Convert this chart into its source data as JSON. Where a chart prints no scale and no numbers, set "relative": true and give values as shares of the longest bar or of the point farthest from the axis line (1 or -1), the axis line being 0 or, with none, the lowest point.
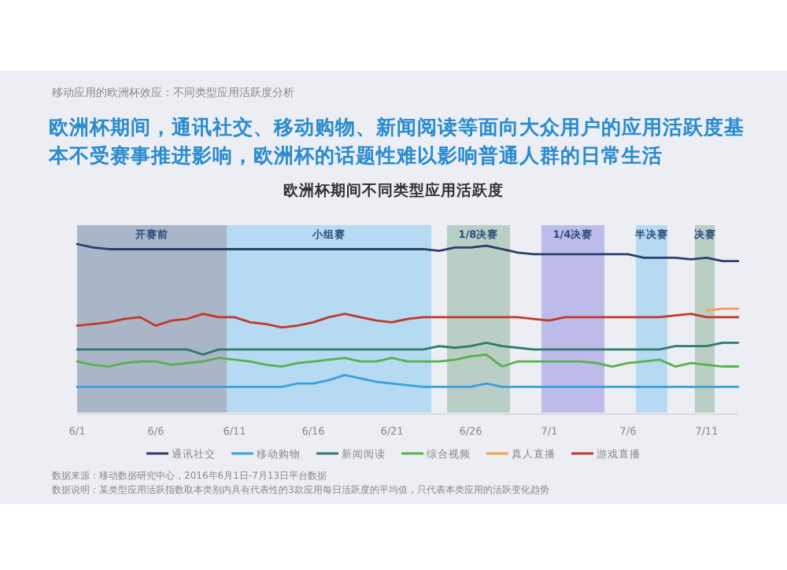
{
  "chart_data": {
    "type": "line",
    "relative": true,
    "title": "欧洲杯期间不同类型应用活跃度",
    "subtitle": "欧洲杯期间，通讯社交、移动购物、新闻阅读等面向大众用户的应用活跃度基本不受赛事推进影响，欧洲杯的话题性难以影响普通人群的日常生活",
    "annotations": [
      "移动应用的欧洲杯效应：不同类型应用活跃度分析",
      "数据来源：移动数据研究中心，2016年6月1日-7月13日平台数据",
      "数据说明：某类型应用活跃指数取本类别内具有代表性的3款应用每日活跃度的平均值，只代表本类应用的活跃变化趋势"
    ],
    "x": [
      "2016-06-01",
      "2016-06-02",
      "2016-06-03",
      "2016-06-04",
      "2016-06-05",
      "2016-06-06",
      "2016-06-07",
      "2016-06-08",
      "2016-06-09",
      "2016-06-10",
      "2016-06-11",
      "2016-06-12",
      "2016-06-13",
      "2016-06-14",
      "2016-06-15",
      "2016-06-16",
      "2016-06-17",
      "2016-06-18",
      "2016-06-19",
      "2016-06-20",
      "2016-06-21",
      "2016-06-22",
      "2016-06-23",
      "2016-06-24",
      "2016-06-25",
      "2016-06-26",
      "2016-06-27",
      "2016-06-28",
      "2016-06-29",
      "2016-06-30",
      "2016-07-01",
      "2016-07-02",
      "2016-07-03",
      "2016-07-04",
      "2016-07-05",
      "2016-07-06",
      "2016-07-07",
      "2016-07-08",
      "2016-07-09",
      "2016-07-10",
      "2016-07-11",
      "2016-07-12",
      "2016-07-13"
    ],
    "xlim": [
      "2016-06-01",
      "2016-07-13"
    ],
    "xticks": [
      {
        "value": "2016-06-01",
        "label": "6/1"
      },
      {
        "value": "2016-06-06",
        "label": "6/6"
      },
      {
        "value": "2016-06-11",
        "label": "6/11"
      },
      {
        "value": "2016-06-16",
        "label": "6/16"
      },
      {
        "value": "2016-06-21",
        "label": "6/21"
      },
      {
        "value": "2016-06-26",
        "label": "6/26"
      },
      {
        "value": "2016-07-01",
        "label": "7/1"
      },
      {
        "value": "2016-07-06",
        "label": "7/6"
      },
      {
        "value": "2016-07-11",
        "label": "7/11"
      }
    ],
    "tick_labels": "x",
    "legend": "bottom",
    "grid": false,
    "bands": [
      {
        "axis": "x",
        "from": "2016-06-01",
        "to": "2016-06-10T12:00",
        "label": "开赛前",
        "color": "#aab6c8"
      },
      {
        "axis": "x",
        "from": "2016-06-10T12:00",
        "to": "2016-06-23T12:00",
        "label": "小组赛",
        "color": "#b5daf2"
      },
      {
        "axis": "x",
        "from": "2016-06-24T12:00",
        "to": "2016-06-28T12:00",
        "label": "1/8决赛",
        "color": "#b9cfc6"
      },
      {
        "axis": "x",
        "from": "2016-06-30T12:00",
        "to": "2016-07-04T12:00",
        "label": "1/4决赛",
        "color": "#bcbbea"
      },
      {
        "axis": "x",
        "from": "2016-07-06T12:00",
        "to": "2016-07-08T12:00",
        "label": "半决赛",
        "color": "#b5daf2"
      },
      {
        "axis": "x",
        "from": "2016-07-10T06:00",
        "to": "2016-07-11T12:00",
        "label": "决赛",
        "color": "#b9cfc6"
      }
    ],
    "series": [
      {
        "name": "通讯社交",
        "color": "#2b3f6b",
        "values": [
          1.0,
          0.98,
          0.97,
          0.97,
          0.97,
          0.97,
          0.97,
          0.97,
          0.97,
          0.97,
          0.97,
          0.97,
          0.97,
          0.97,
          0.97,
          0.97,
          0.97,
          0.97,
          0.97,
          0.97,
          0.97,
          0.97,
          0.97,
          0.96,
          0.98,
          0.98,
          0.99,
          0.97,
          0.95,
          0.94,
          0.94,
          0.94,
          0.94,
          0.94,
          0.94,
          0.94,
          0.92,
          0.92,
          0.92,
          0.91,
          0.92,
          0.9,
          0.9
        ]
      },
      {
        "name": "移动购物",
        "color": "#3aa0dc",
        "values": [
          0.16,
          0.16,
          0.16,
          0.16,
          0.16,
          0.16,
          0.16,
          0.16,
          0.16,
          0.16,
          0.16,
          0.16,
          0.16,
          0.16,
          0.18,
          0.18,
          0.2,
          0.23,
          0.21,
          0.19,
          0.18,
          0.17,
          0.16,
          0.16,
          0.16,
          0.16,
          0.18,
          0.16,
          0.16,
          0.16,
          0.16,
          0.16,
          0.16,
          0.16,
          0.16,
          0.16,
          0.16,
          0.16,
          0.16,
          0.16,
          0.16,
          0.16,
          0.16
        ]
      },
      {
        "name": "新闻阅读",
        "color": "#2e7a6e",
        "values": [
          0.38,
          0.38,
          0.38,
          0.38,
          0.38,
          0.38,
          0.38,
          0.38,
          0.35,
          0.38,
          0.38,
          0.38,
          0.38,
          0.38,
          0.38,
          0.38,
          0.38,
          0.38,
          0.38,
          0.38,
          0.38,
          0.38,
          0.38,
          0.4,
          0.39,
          0.4,
          0.42,
          0.4,
          0.39,
          0.38,
          0.38,
          0.38,
          0.38,
          0.38,
          0.38,
          0.38,
          0.38,
          0.38,
          0.4,
          0.4,
          0.4,
          0.42,
          0.42
        ]
      },
      {
        "name": "综合视频",
        "color": "#5bb04a",
        "values": [
          0.31,
          0.29,
          0.28,
          0.3,
          0.31,
          0.31,
          0.29,
          0.3,
          0.31,
          0.33,
          0.32,
          0.31,
          0.29,
          0.28,
          0.3,
          0.31,
          0.32,
          0.33,
          0.31,
          0.31,
          0.33,
          0.31,
          0.31,
          0.31,
          0.32,
          0.34,
          0.35,
          0.28,
          0.31,
          0.31,
          0.31,
          0.31,
          0.31,
          0.3,
          0.28,
          0.3,
          0.31,
          0.32,
          0.28,
          0.3,
          0.29,
          0.28,
          0.28
        ]
      },
      {
        "name": "真人直播",
        "color": "#f0a050",
        "values": [
          null,
          null,
          null,
          null,
          null,
          null,
          null,
          null,
          null,
          null,
          null,
          null,
          null,
          null,
          null,
          null,
          null,
          null,
          null,
          null,
          null,
          null,
          null,
          null,
          null,
          null,
          null,
          null,
          null,
          null,
          null,
          null,
          null,
          null,
          null,
          null,
          null,
          null,
          null,
          null,
          0.61,
          0.62,
          0.62
        ]
      },
      {
        "name": "游戏直播",
        "color": "#c0392b",
        "values": [
          0.52,
          0.53,
          0.54,
          0.56,
          0.57,
          0.52,
          0.55,
          0.56,
          0.59,
          0.57,
          0.57,
          0.54,
          0.53,
          0.51,
          0.52,
          0.54,
          0.57,
          0.59,
          0.57,
          0.55,
          0.54,
          0.56,
          0.57,
          0.57,
          0.57,
          0.57,
          0.57,
          0.57,
          0.57,
          0.56,
          0.55,
          0.57,
          0.57,
          0.57,
          0.57,
          0.57,
          0.57,
          0.57,
          0.58,
          0.59,
          0.57,
          0.57,
          0.57
        ]
      }
    ]
  }
}
